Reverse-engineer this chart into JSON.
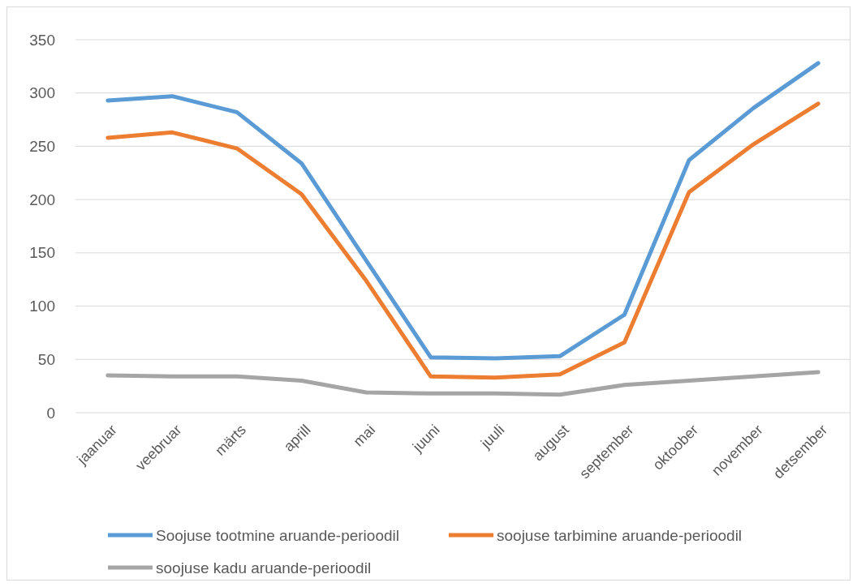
{
  "chart_data": {
    "type": "line",
    "categories": [
      "jaanuar",
      "veebruar",
      "märts",
      "aprill",
      "mai",
      "juuni",
      "juuli",
      "august",
      "september",
      "oktoober",
      "november",
      "detsember"
    ],
    "series": [
      {
        "name": "Soojuse tootmine aruande-perioodil",
        "color": "#5b9bd5",
        "values": [
          293,
          297,
          282,
          234,
          143,
          52,
          51,
          53,
          92,
          237,
          286,
          328
        ]
      },
      {
        "name": "soojuse tarbimine aruande-perioodil",
        "color": "#ed7d31",
        "values": [
          258,
          263,
          248,
          205,
          124,
          34,
          33,
          36,
          66,
          207,
          252,
          290
        ]
      },
      {
        "name": "soojuse kadu aruande-perioodil",
        "color": "#a5a5a5",
        "values": [
          35,
          34,
          34,
          30,
          19,
          18,
          18,
          17,
          26,
          30,
          34,
          38
        ]
      }
    ],
    "ylim": [
      0,
      350
    ],
    "yticks": [
      0,
      50,
      100,
      150,
      200,
      250,
      300,
      350
    ],
    "grid": "y",
    "legend": "bottom",
    "marker": "none",
    "line_style": "solid"
  }
}
